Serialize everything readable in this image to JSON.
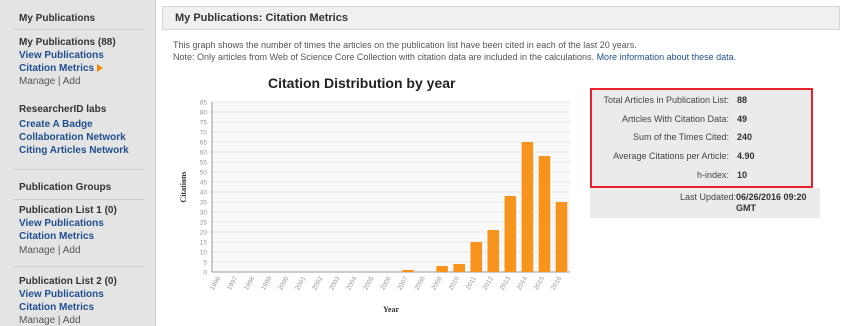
{
  "sidebar": {
    "heading": "My Publications",
    "count_label": "My Publications (88)",
    "view_publications": "View Publications",
    "citation_metrics": "Citation Metrics",
    "manage": "Manage",
    "sep": "|",
    "add": "Add",
    "labs_heading": "ResearcherID labs",
    "create_badge": "Create A Badge",
    "collaboration_network": "Collaboration Network",
    "citing_articles_network": "Citing Articles Network",
    "groups_heading": "Publication Groups",
    "list1": {
      "title": "Publication List 1 (0)",
      "view": "View Publications",
      "metrics": "Citation Metrics",
      "manage": "Manage",
      "add": "Add"
    },
    "list2": {
      "title": "Publication List 2 (0)",
      "view": "View Publications",
      "metrics": "Citation Metrics",
      "manage": "Manage",
      "add": "Add"
    }
  },
  "main": {
    "title": "My Publications: Citation Metrics",
    "desc_line1": "This graph shows the number of times the articles on the publication list have been cited in each of the last 20 years.",
    "desc_line2": "Note: Only articles from Web of Science Core Collection with citation data are included in the calculations.",
    "more_info_link": "More information about these data."
  },
  "metrics": {
    "total_label": "Total Articles in Publication List:",
    "total_value": "88",
    "with_data_label": "Articles With Citation Data:",
    "with_data_value": "49",
    "sum_label": "Sum of the Times Cited:",
    "sum_value": "240",
    "avg_label": "Average Citations per Article:",
    "avg_value": "4.90",
    "h_label": "h-index:",
    "h_value": "10",
    "updated_label": "Last Updated:",
    "updated_value": "06/26/2016 09:20 GMT"
  },
  "colors": {
    "bar": "#f7941d",
    "accent_link": "#1f4f8f",
    "highlight_border": "#e8222a"
  },
  "chart_data": {
    "type": "bar",
    "title": "Citation Distribution by year",
    "xlabel": "Year",
    "ylabel": "Citations",
    "categories": [
      "1996",
      "1997",
      "1998",
      "1999",
      "2000",
      "2001",
      "2002",
      "2003",
      "2004",
      "2005",
      "2006",
      "2007",
      "2008",
      "2009",
      "2010",
      "2011",
      "2012",
      "2013",
      "2014",
      "2015",
      "2016"
    ],
    "values": [
      0,
      0,
      0,
      0,
      0,
      0,
      0,
      0,
      0,
      0,
      0,
      1,
      0,
      3,
      4,
      15,
      21,
      38,
      65,
      58,
      35
    ],
    "yticks": [
      0,
      5,
      10,
      15,
      20,
      25,
      30,
      35,
      40,
      45,
      50,
      55,
      60,
      65,
      70,
      75,
      80,
      85
    ],
    "ylim": [
      0,
      85
    ],
    "grid": true
  }
}
